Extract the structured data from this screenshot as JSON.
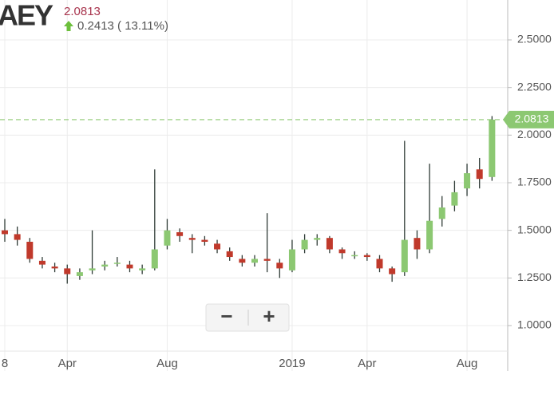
{
  "header": {
    "symbol": "AEY",
    "change": "0.2413 ( 13.11%)"
  },
  "controls": {
    "zoom_out": "−",
    "zoom_in": "+"
  },
  "chart_data": {
    "type": "candlestick",
    "categories": [
      "8",
      null,
      null,
      null,
      null,
      "Apr",
      null,
      null,
      null,
      null,
      null,
      null,
      null,
      "Aug",
      null,
      null,
      null,
      null,
      null,
      null,
      null,
      null,
      null,
      "2019",
      null,
      null,
      null,
      null,
      null,
      "Apr",
      null,
      null,
      null,
      null,
      null,
      null,
      null,
      "Aug",
      null,
      null
    ],
    "open": [
      1.5,
      1.48,
      1.44,
      1.34,
      1.31,
      1.3,
      1.26,
      1.29,
      1.31,
      1.33,
      1.32,
      1.29,
      1.3,
      1.42,
      1.49,
      1.46,
      1.45,
      1.43,
      1.39,
      1.35,
      1.33,
      1.35,
      1.33,
      1.29,
      1.4,
      1.45,
      1.46,
      1.4,
      1.37,
      1.37,
      1.35,
      1.3,
      1.28,
      1.46,
      1.4,
      1.56,
      1.63,
      1.72,
      1.82,
      1.78
    ],
    "high": [
      1.56,
      1.52,
      1.46,
      1.36,
      1.33,
      1.32,
      1.3,
      1.5,
      1.34,
      1.36,
      1.34,
      1.32,
      1.82,
      1.56,
      1.51,
      1.48,
      1.47,
      1.45,
      1.41,
      1.37,
      1.37,
      1.59,
      1.35,
      1.45,
      1.48,
      1.48,
      1.47,
      1.41,
      1.39,
      1.38,
      1.37,
      1.31,
      1.97,
      1.5,
      1.85,
      1.68,
      1.76,
      1.85,
      1.88,
      2.1
    ],
    "low": [
      1.44,
      1.42,
      1.33,
      1.3,
      1.28,
      1.22,
      1.24,
      1.27,
      1.29,
      1.31,
      1.28,
      1.27,
      1.29,
      1.4,
      1.44,
      1.38,
      1.42,
      1.38,
      1.34,
      1.31,
      1.31,
      1.28,
      1.25,
      1.28,
      1.38,
      1.42,
      1.38,
      1.35,
      1.35,
      1.34,
      1.28,
      1.23,
      1.26,
      1.35,
      1.38,
      1.52,
      1.6,
      1.68,
      1.72,
      1.76
    ],
    "close": [
      1.48,
      1.45,
      1.35,
      1.32,
      1.3,
      1.27,
      1.28,
      1.3,
      1.32,
      1.33,
      1.3,
      1.3,
      1.4,
      1.5,
      1.47,
      1.45,
      1.44,
      1.4,
      1.36,
      1.33,
      1.35,
      1.34,
      1.3,
      1.4,
      1.45,
      1.46,
      1.4,
      1.38,
      1.37,
      1.36,
      1.3,
      1.27,
      1.45,
      1.4,
      1.55,
      1.62,
      1.7,
      1.8,
      1.77,
      2.0813
    ],
    "up_color": "#8cc872",
    "down_color": "#c0392b",
    "wick_color": "#2f3b36",
    "price_color": "#8cc872",
    "ylim": [
      0.761,
      2.7095
    ],
    "yticks": [
      {
        "value": 1.0,
        "label": "1.0000"
      },
      {
        "value": 1.25,
        "label": "1.2500"
      },
      {
        "value": 1.5,
        "label": "1.5000"
      },
      {
        "value": 1.75,
        "label": "1.7500"
      },
      {
        "value": 2.0,
        "label": "2.0000"
      },
      {
        "value": 2.25,
        "label": "2.2500"
      },
      {
        "value": 2.5,
        "label": "2.5000"
      }
    ],
    "grid": true
  }
}
